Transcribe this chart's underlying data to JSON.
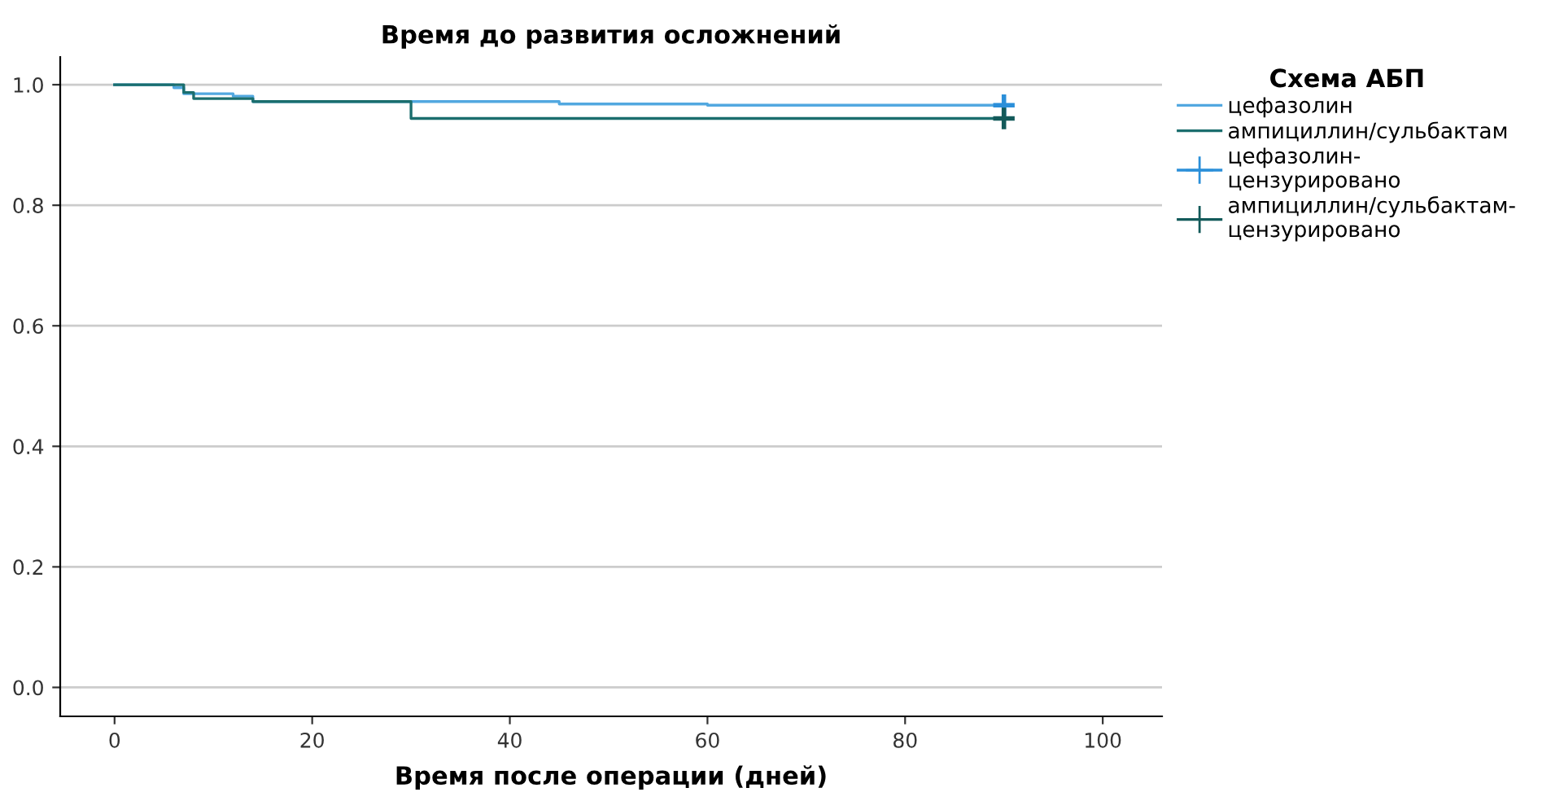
{
  "chart_data": {
    "type": "step",
    "title": "Время до развития осложнений",
    "xlabel": "Время после операции (дней)",
    "legend_title": "Схема АБП",
    "legend": "top right",
    "grid": "y",
    "series": [
      {
        "name": "цефазолин",
        "color": "#52a8e0",
        "x": [
          0,
          6,
          7,
          12,
          14,
          45,
          60,
          90
        ],
        "values": [
          1,
          0.995,
          0.985,
          0.981,
          0.972,
          0.968,
          0.966,
          0.966
        ]
      },
      {
        "name": "ампициллин/сульбактам",
        "color": "#1b6e6e",
        "x": [
          0,
          7,
          8,
          14,
          30,
          90
        ],
        "values": [
          1,
          0.987,
          0.977,
          0.972,
          0.944,
          0.944
        ]
      },
      {
        "name": "цефазолин-\nцензурировано",
        "type": "scatter",
        "marker": "cross",
        "color": "#2b8fd9",
        "x": [
          90
        ],
        "values": [
          0.966
        ]
      },
      {
        "name": "ампициллин/сульбактам-\nцензурировано",
        "type": "scatter",
        "marker": "cross",
        "color": "#135a5a",
        "x": [
          90
        ],
        "values": [
          0.944
        ]
      }
    ],
    "xlim": [
      -5.5,
      106
    ],
    "xticks": [
      0,
      20,
      40,
      60,
      80,
      100
    ],
    "ylim": [
      -0.048,
      1.046
    ],
    "yticks": [
      {
        "value": 0,
        "label": "0.0"
      },
      {
        "value": 0.2,
        "label": "0.2"
      },
      {
        "value": 0.4,
        "label": "0.4"
      },
      {
        "value": 0.6,
        "label": "0.6"
      },
      {
        "value": 0.8,
        "label": "0.8"
      },
      {
        "value": 1,
        "label": "1.0"
      }
    ]
  }
}
